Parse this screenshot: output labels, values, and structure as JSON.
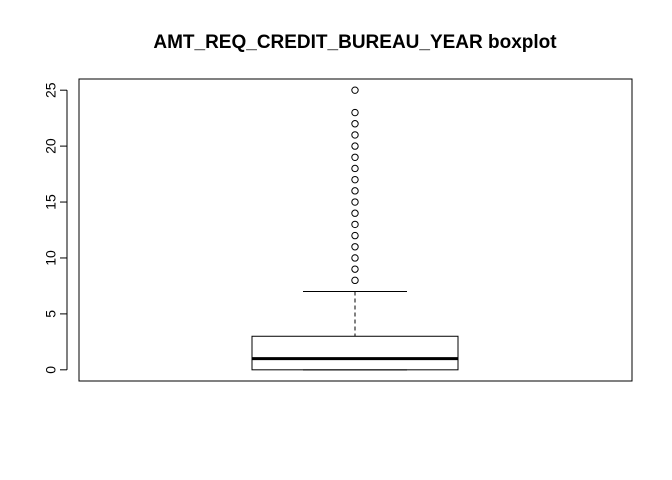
{
  "chart_data": {
    "type": "boxplot",
    "title": "AMT_REQ_CREDIT_BUREAU_YEAR boxplot",
    "xlabel": "",
    "ylabel": "",
    "ylim": [
      -1,
      26
    ],
    "yticks": [
      0,
      5,
      10,
      15,
      20,
      25
    ],
    "yticklabels": [
      "0",
      "5",
      "10",
      "15",
      "20",
      "25"
    ],
    "grid": false,
    "box": {
      "lower_whisker": 0,
      "q1": 0,
      "median": 1,
      "q3": 3,
      "upper_whisker": 7,
      "outliers": [
        8,
        9,
        10,
        11,
        12,
        13,
        14,
        15,
        16,
        17,
        18,
        19,
        20,
        21,
        22,
        23,
        25
      ]
    }
  }
}
